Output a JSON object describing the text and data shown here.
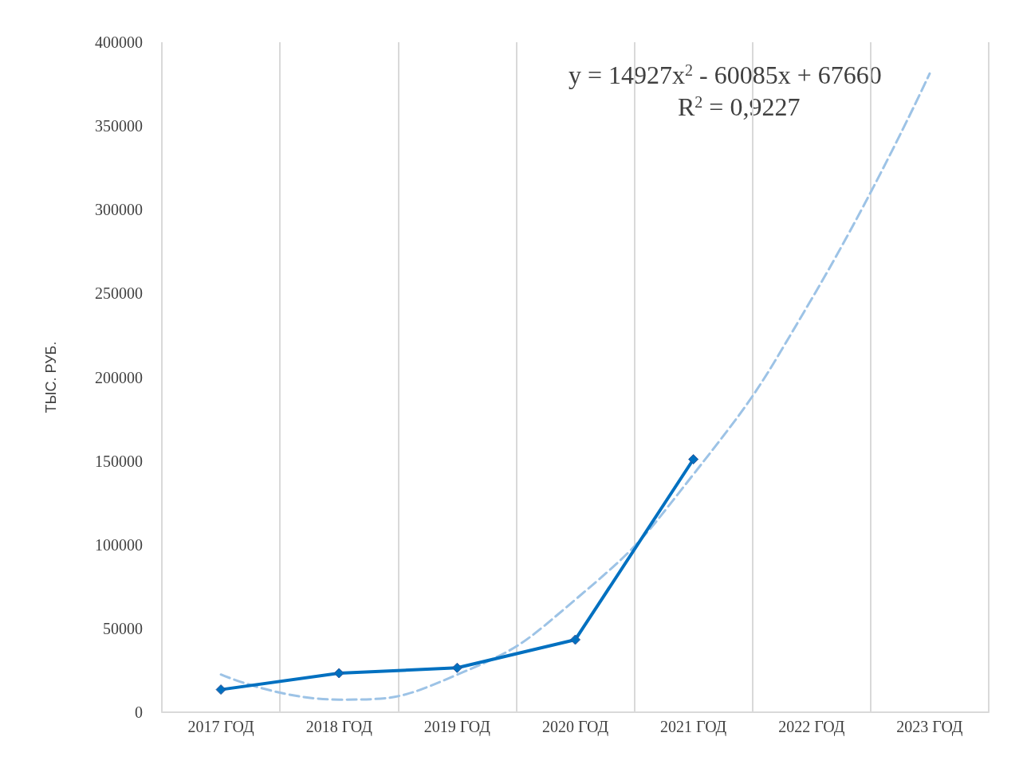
{
  "chart_data": {
    "type": "line",
    "ylabel": "ТЫС. РУБ.",
    "categories": [
      "2017 ГОД",
      "2018 ГОД",
      "2019 ГОД",
      "2020 ГОД",
      "2021 ГОД",
      "2022 ГОД",
      "2023 ГОД"
    ],
    "series": [
      {
        "color": "#0070c0",
        "marker": "diamond",
        "line_style": "solid",
        "values": [
          13500,
          23300,
          26500,
          43300,
          151000,
          null,
          null
        ]
      },
      {
        "color": "#9dc3e6",
        "marker": "none",
        "line_style": "dashed",
        "values": [
          22500,
          7500,
          22400,
          67200,
          142000,
          246600,
          381300
        ]
      }
    ],
    "ylim": [
      0,
      400000
    ],
    "yticks": [
      0,
      50000,
      100000,
      150000,
      200000,
      250000,
      300000,
      350000,
      400000
    ],
    "grid": "x",
    "annotations": [
      "y = 14927x$^{2}$ - 60085x + 67660",
      "R$^{2}$ = 0,9227"
    ]
  }
}
